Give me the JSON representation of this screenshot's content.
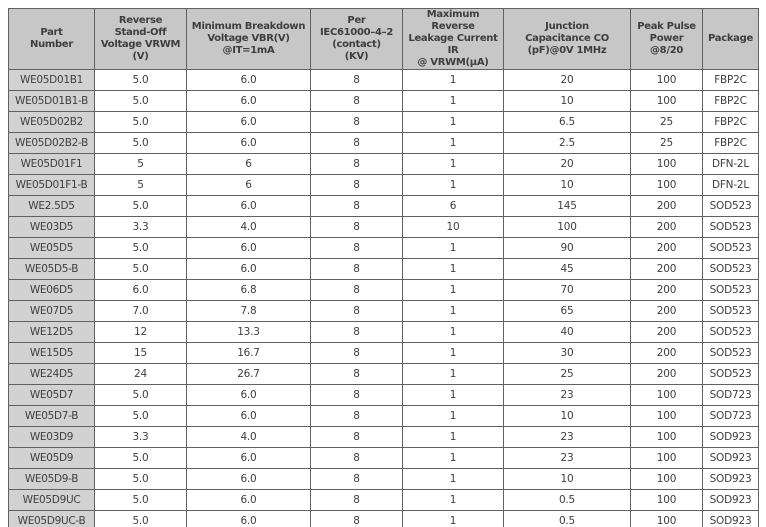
{
  "colors": {
    "header_bg": "#c7c7c7",
    "part_column_bg": "#d2d2d2",
    "cell_bg": "#ffffff",
    "border": "#616161",
    "text": "#3e3e3e"
  },
  "table": {
    "columns": [
      {
        "id": "part_number",
        "label": "Part\nNumber"
      },
      {
        "id": "vrwm",
        "label": "Reverse\nStand-Off\nVoltage VRWM\n(V)"
      },
      {
        "id": "vbr",
        "label": "Minimum Breakdown\nVoltage VBR(V)\n@IT=1mA"
      },
      {
        "id": "iec",
        "label": "Per\nIEC61000–4–2\n(contact)\n(KV)"
      },
      {
        "id": "ir",
        "label": "Maximum Reverse\nLeakage Current IR\n@ VRWM(μA)"
      },
      {
        "id": "co",
        "label": "Junction\nCapacitance CO\n(pF)@0V 1MHz"
      },
      {
        "id": "ppp",
        "label": "Peak Pulse\nPower\n@8/20"
      },
      {
        "id": "package",
        "label": "Package"
      }
    ],
    "rows": [
      [
        "WE05D01B1",
        "5.0",
        "6.0",
        "8",
        "1",
        "20",
        "100",
        "FBP2C"
      ],
      [
        "WE05D01B1-B",
        "5.0",
        "6.0",
        "8",
        "1",
        "10",
        "100",
        "FBP2C"
      ],
      [
        "WE05D02B2",
        "5.0",
        "6.0",
        "8",
        "1",
        "6.5",
        "25",
        "FBP2C"
      ],
      [
        "WE05D02B2-B",
        "5.0",
        "6.0",
        "8",
        "1",
        "2.5",
        "25",
        "FBP2C"
      ],
      [
        "WE05D01F1",
        "5",
        "6",
        "8",
        "1",
        "20",
        "100",
        "DFN-2L"
      ],
      [
        "WE05D01F1-B",
        "5",
        "6",
        "8",
        "1",
        "10",
        "100",
        "DFN-2L"
      ],
      [
        "WE2.5D5",
        "5.0",
        "6.0",
        "8",
        "6",
        "145",
        "200",
        "SOD523"
      ],
      [
        "WE03D5",
        "3.3",
        "4.0",
        "8",
        "10",
        "100",
        "200",
        "SOD523"
      ],
      [
        "WE05D5",
        "5.0",
        "6.0",
        "8",
        "1",
        "90",
        "200",
        "SOD523"
      ],
      [
        "WE05D5-B",
        "5.0",
        "6.0",
        "8",
        "1",
        "45",
        "200",
        "SOD523"
      ],
      [
        "WE06D5",
        "6.0",
        "6.8",
        "8",
        "1",
        "70",
        "200",
        "SOD523"
      ],
      [
        "WE07D5",
        "7.0",
        "7.8",
        "8",
        "1",
        "65",
        "200",
        "SOD523"
      ],
      [
        "WE12D5",
        "12",
        "13.3",
        "8",
        "1",
        "40",
        "200",
        "SOD523"
      ],
      [
        "WE15D5",
        "15",
        "16.7",
        "8",
        "1",
        "30",
        "200",
        "SOD523"
      ],
      [
        "WE24D5",
        "24",
        "26.7",
        "8",
        "1",
        "25",
        "200",
        "SOD523"
      ],
      [
        "WE05D7",
        "5.0",
        "6.0",
        "8",
        "1",
        "23",
        "100",
        "SOD723"
      ],
      [
        "WE05D7-B",
        "5.0",
        "6.0",
        "8",
        "1",
        "10",
        "100",
        "SOD723"
      ],
      [
        "WE03D9",
        "3.3",
        "4.0",
        "8",
        "1",
        "23",
        "100",
        "SOD923"
      ],
      [
        "WE05D9",
        "5.0",
        "6.0",
        "8",
        "1",
        "23",
        "100",
        "SOD923"
      ],
      [
        "WE05D9-B",
        "5.0",
        "6.0",
        "8",
        "1",
        "10",
        "100",
        "SOD923"
      ],
      [
        "WE05D9UC",
        "5.0",
        "6.0",
        "8",
        "1",
        "0.5",
        "100",
        "SOD923"
      ],
      [
        "WE05D9UC-B",
        "5.0",
        "6.0",
        "8",
        "1",
        "0.5",
        "100",
        "SOD923"
      ]
    ]
  }
}
